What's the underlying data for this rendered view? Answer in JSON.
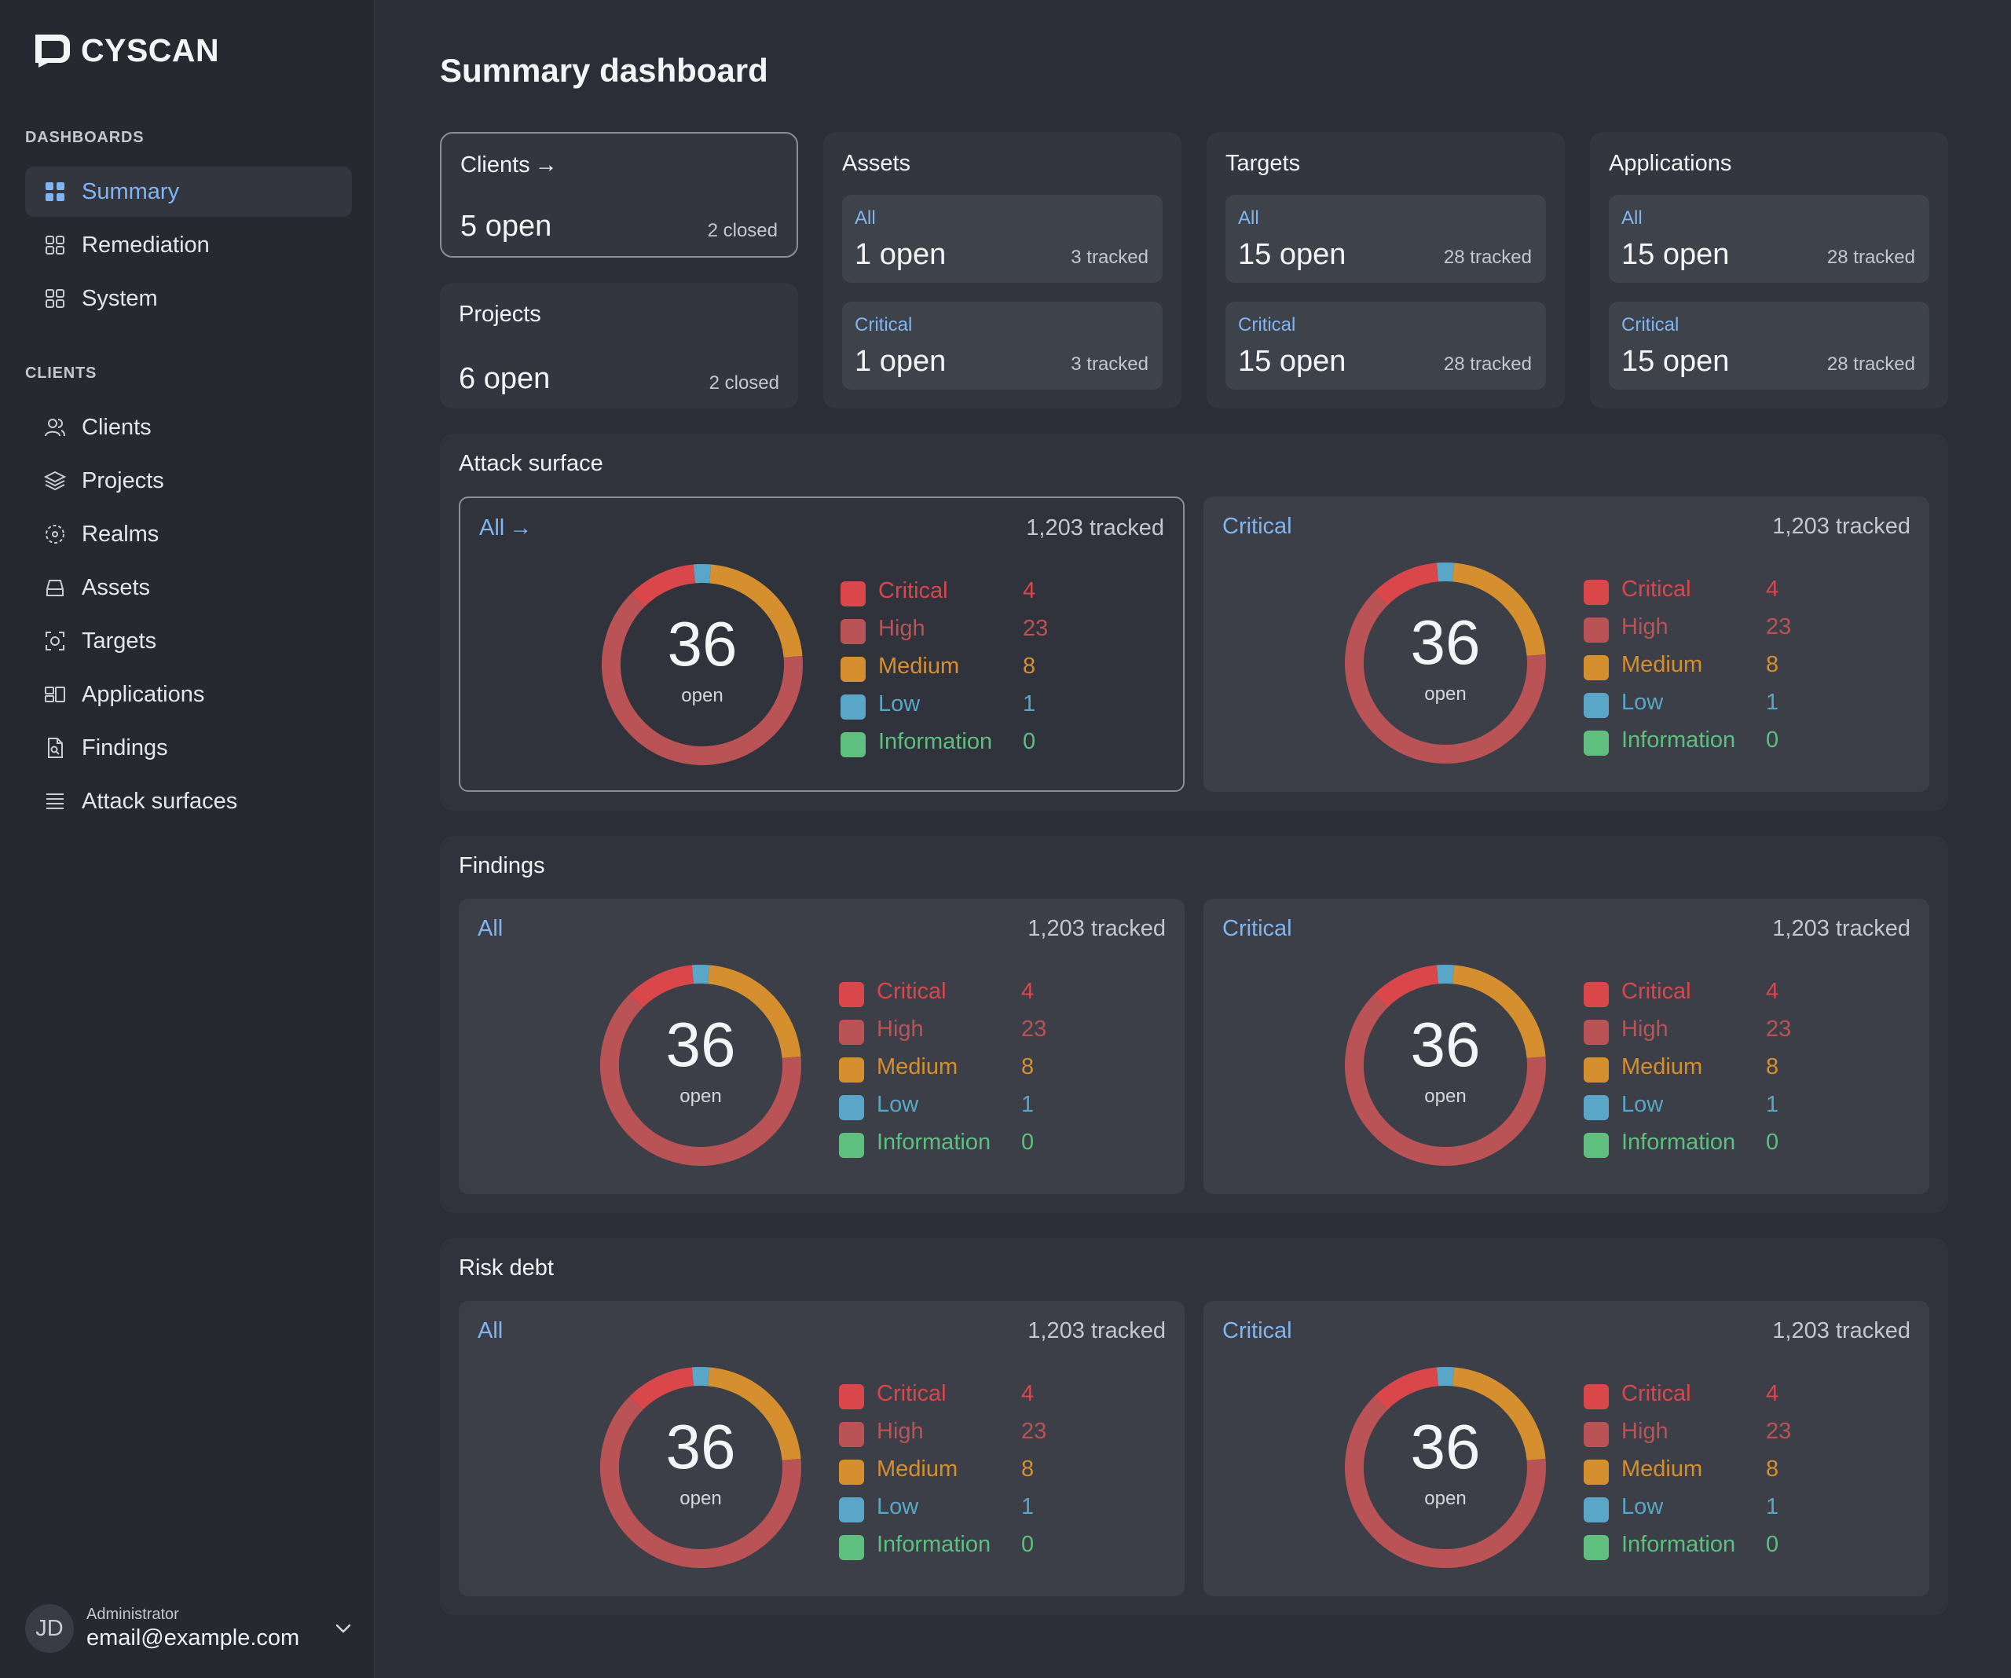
{
  "brand": {
    "name": "CYSCAN"
  },
  "sidebar": {
    "dashboards_label": "DASHBOARDS",
    "clients_label": "CLIENTS",
    "dashboards": [
      {
        "label": "Summary",
        "icon": "grid-icon",
        "active": true
      },
      {
        "label": "Remediation",
        "icon": "grid-icon"
      },
      {
        "label": "System",
        "icon": "grid-icon"
      }
    ],
    "clients": [
      {
        "label": "Clients",
        "icon": "users-icon"
      },
      {
        "label": "Projects",
        "icon": "layers-icon"
      },
      {
        "label": "Realms",
        "icon": "realm-icon"
      },
      {
        "label": "Assets",
        "icon": "drive-icon"
      },
      {
        "label": "Targets",
        "icon": "target-icon"
      },
      {
        "label": "Applications",
        "icon": "applications-icon"
      },
      {
        "label": "Findings",
        "icon": "file-search-icon"
      },
      {
        "label": "Attack surfaces",
        "icon": "list-icon"
      }
    ]
  },
  "user": {
    "initials": "JD",
    "role": "Administrator",
    "email": "email@example.com"
  },
  "page": {
    "title": "Summary dashboard"
  },
  "summary": {
    "clients": {
      "title": "Clients",
      "arrow": "→",
      "open": "5 open",
      "closed": "2 closed"
    },
    "projects": {
      "title": "Projects",
      "open": "6 open",
      "closed": "2 closed"
    },
    "assets": {
      "title": "Assets",
      "all": {
        "label": "All",
        "open": "1 open",
        "tracked": "3 tracked"
      },
      "critical": {
        "label": "Critical",
        "open": "1 open",
        "tracked": "3 tracked"
      }
    },
    "targets": {
      "title": "Targets",
      "all": {
        "label": "All",
        "open": "15 open",
        "tracked": "28 tracked"
      },
      "critical": {
        "label": "Critical",
        "open": "15 open",
        "tracked": "28 tracked"
      }
    },
    "applications": {
      "title": "Applications",
      "all": {
        "label": "All",
        "open": "15 open",
        "tracked": "28 tracked"
      },
      "critical": {
        "label": "Critical",
        "open": "15 open",
        "tracked": "28 tracked"
      }
    }
  },
  "severity_colors": {
    "Critical": "#d9474a",
    "High": "#b95355",
    "Medium": "#d68f2e",
    "Low": "#5aa6c8",
    "Information": "#5fbf7f"
  },
  "sections": [
    {
      "title": "Attack surface",
      "panels": [
        {
          "label": "All",
          "arrow": "→",
          "tracked": "1,203 tracked",
          "total": "36",
          "total_sub": "open",
          "outlined": true
        },
        {
          "label": "Critical",
          "arrow": "",
          "tracked": "1,203 tracked",
          "total": "36",
          "total_sub": "open",
          "outlined": false
        }
      ]
    },
    {
      "title": "Findings",
      "panels": [
        {
          "label": "All",
          "arrow": "",
          "tracked": "1,203 tracked",
          "total": "36",
          "total_sub": "open",
          "outlined": false
        },
        {
          "label": "Critical",
          "arrow": "",
          "tracked": "1,203 tracked",
          "total": "36",
          "total_sub": "open",
          "outlined": false
        }
      ]
    },
    {
      "title": "Risk debt",
      "panels": [
        {
          "label": "All",
          "arrow": "",
          "tracked": "1,203 tracked",
          "total": "36",
          "total_sub": "open",
          "outlined": false
        },
        {
          "label": "Critical",
          "arrow": "",
          "tracked": "1,203 tracked",
          "total": "36",
          "total_sub": "open",
          "outlined": false
        }
      ]
    }
  ],
  "chart_data": {
    "type": "pie",
    "variant": "donut",
    "center_value": "36",
    "center_label": "open",
    "categories": [
      "Critical",
      "High",
      "Medium",
      "Low",
      "Information"
    ],
    "values": [
      4,
      23,
      8,
      1,
      0
    ],
    "colors": [
      "#d9474a",
      "#b95355",
      "#d68f2e",
      "#5aa6c8",
      "#5fbf7f"
    ]
  }
}
